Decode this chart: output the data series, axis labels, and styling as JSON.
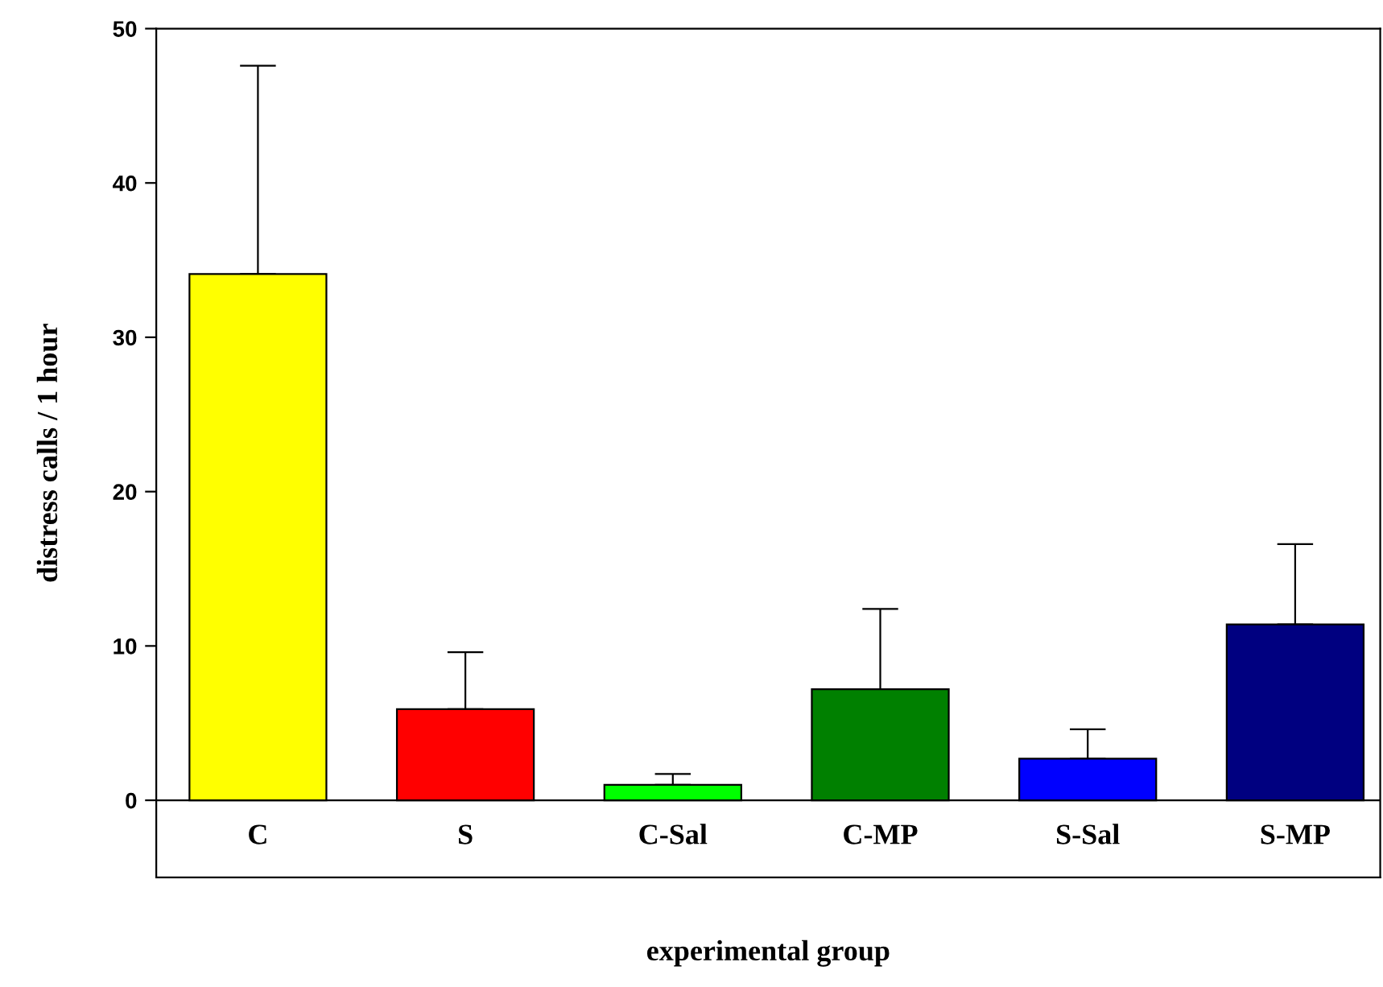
{
  "chart_data": {
    "type": "bar",
    "xlabel": "experimental group",
    "ylabel": "distress calls / 1 hour",
    "categories": [
      "C",
      "S",
      "C-Sal",
      "C-MP",
      "S-Sal",
      "S-MP"
    ],
    "values": [
      34.1,
      5.9,
      1.0,
      7.2,
      2.7,
      11.4
    ],
    "colors": [
      "#ffff00",
      "#ff0000",
      "#00ff00",
      "#008000",
      "#0000ff",
      "#000080"
    ],
    "errors": [
      [
        34.1,
        47.6
      ],
      [
        5.9,
        9.6
      ],
      [
        1.0,
        1.7
      ],
      [
        7.2,
        12.4
      ],
      [
        2.7,
        4.6
      ],
      [
        11.4,
        16.6
      ]
    ],
    "ylim": [
      -5,
      50
    ],
    "yticks": [
      0,
      10,
      20,
      30,
      40,
      50
    ],
    "grid": false,
    "legend": false
  }
}
